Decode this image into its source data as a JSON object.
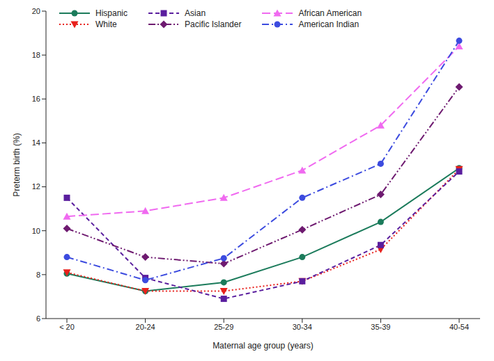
{
  "chart_data": {
    "type": "line",
    "x_label": "Maternal age group (years)",
    "y_label": "Preterm birth (%)",
    "categories": [
      "< 20",
      "20-24",
      "25-29",
      "30-34",
      "35-39",
      "40-54"
    ],
    "ylim": [
      6,
      20
    ],
    "yticks": [
      6,
      8,
      10,
      12,
      14,
      16,
      18,
      20
    ],
    "grid": false,
    "legend": "upper left",
    "series": [
      {
        "name": "Hispanic",
        "color": "#1b7b5b",
        "marker": "circle",
        "line_style": "solid",
        "values": [
          8.05,
          7.25,
          7.65,
          8.8,
          10.4,
          12.85
        ]
      },
      {
        "name": "White",
        "color": "#e8211c",
        "marker": "triangle-down",
        "line_style": "dotted",
        "values": [
          8.1,
          7.25,
          7.25,
          7.7,
          9.15,
          12.8
        ]
      },
      {
        "name": "Asian",
        "color": "#5a1e9e",
        "marker": "square",
        "line_style": "dashed",
        "values": [
          11.5,
          7.85,
          6.9,
          7.7,
          9.35,
          12.7
        ]
      },
      {
        "name": "Pacific Islander",
        "color": "#6e1a70",
        "marker": "diamond",
        "line_style": "dashdotdot",
        "values": [
          10.1,
          8.8,
          8.5,
          10.05,
          11.65,
          16.55
        ]
      },
      {
        "name": "African American",
        "color": "#f06af0",
        "marker": "triangle",
        "line_style": "longdash",
        "values": [
          10.65,
          10.9,
          11.5,
          12.75,
          14.8,
          18.4
        ]
      },
      {
        "name": "American Indian",
        "color": "#3c4bdf",
        "marker": "circle",
        "line_style": "dashdot",
        "values": [
          8.8,
          7.75,
          8.75,
          11.5,
          13.05,
          18.65
        ]
      }
    ]
  }
}
